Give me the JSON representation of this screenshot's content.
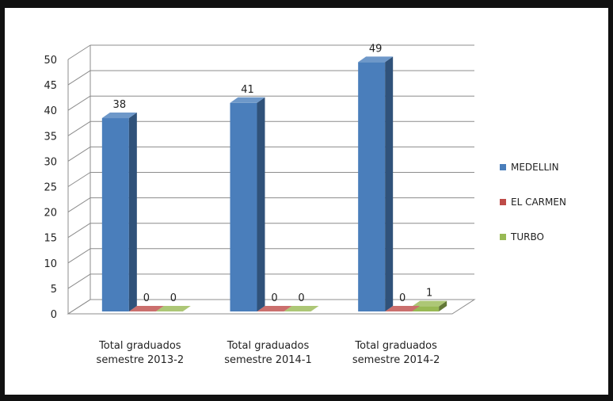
{
  "chart_data": {
    "type": "bar",
    "categories": [
      [
        "Total graduados",
        "semestre 2013-2"
      ],
      [
        "Total graduados",
        "semestre 2014-1"
      ],
      [
        "Total graduados",
        "semestre 2014-2"
      ]
    ],
    "series": [
      {
        "name": "MEDELLIN",
        "values": [
          38,
          41,
          49
        ],
        "color": "#4a7ebb"
      },
      {
        "name": "EL CARMEN",
        "values": [
          0,
          0,
          0
        ],
        "color": "#be4b48"
      },
      {
        "name": "TURBO",
        "values": [
          0,
          0,
          1
        ],
        "color": "#98b954"
      }
    ],
    "yticks": [
      0,
      5,
      10,
      15,
      20,
      25,
      30,
      35,
      40,
      45,
      50
    ],
    "ylim": [
      0,
      50
    ],
    "title": "",
    "xlabel": "",
    "ylabel": "",
    "grid": true,
    "legend_position": "right",
    "style": "3d-column"
  }
}
